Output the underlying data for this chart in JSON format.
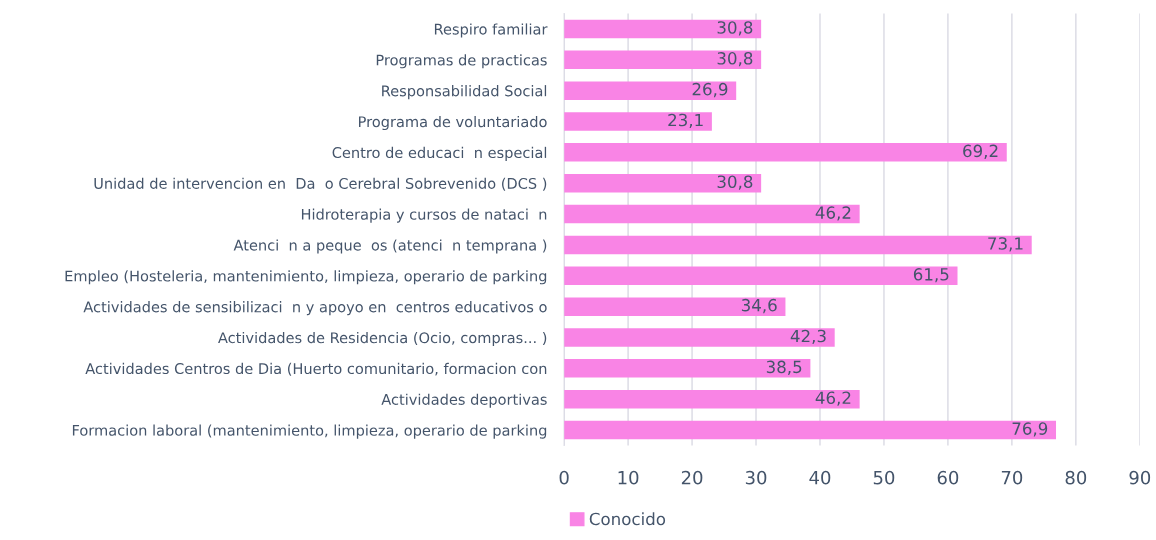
{
  "chart_data": {
    "type": "bar",
    "orientation": "horizontal",
    "categories": [
      "Respiro familiar",
      "Programas de practicas",
      "Responsabilidad Social",
      "Programa de voluntariado",
      "Centro de educaci  n especial",
      "Unidad de intervencion en  Da  o Cerebral Sobrevenido (DCS )",
      "Hidroterapia y cursos de nataci  n",
      "Atenci  n a peque  os (atenci  n temprana )",
      "Empleo (Hosteleria, mantenimiento, limpieza, operario de parking",
      "Actividades de sensibilizaci  n y apoyo en  centros educativos o",
      "Actividades de Residencia (Ocio, compras... )",
      "Actividades Centros de Dia (Huerto comunitario, formacion con",
      "Actividades deportivas",
      "Formacion laboral (mantenimiento, limpieza, operario de parking"
    ],
    "series": [
      {
        "name": "Conocido",
        "color": "#f984e5",
        "values": [
          30.8,
          30.8,
          26.9,
          23.1,
          69.2,
          30.8,
          46.2,
          73.1,
          61.5,
          34.6,
          42.3,
          38.5,
          46.2,
          76.9
        ],
        "value_labels": [
          "30,8",
          "30,8",
          "26,9",
          "23,1",
          "69,2",
          "30,8",
          "46,2",
          "73,1",
          "61,5",
          "34,6",
          "42,3",
          "38,5",
          "46,2",
          "76,9"
        ]
      }
    ],
    "xlim": [
      0,
      90
    ],
    "xticks": [
      0,
      10,
      20,
      30,
      40,
      50,
      60,
      70,
      80,
      90
    ],
    "grid": "x",
    "legend": "bottom left"
  }
}
